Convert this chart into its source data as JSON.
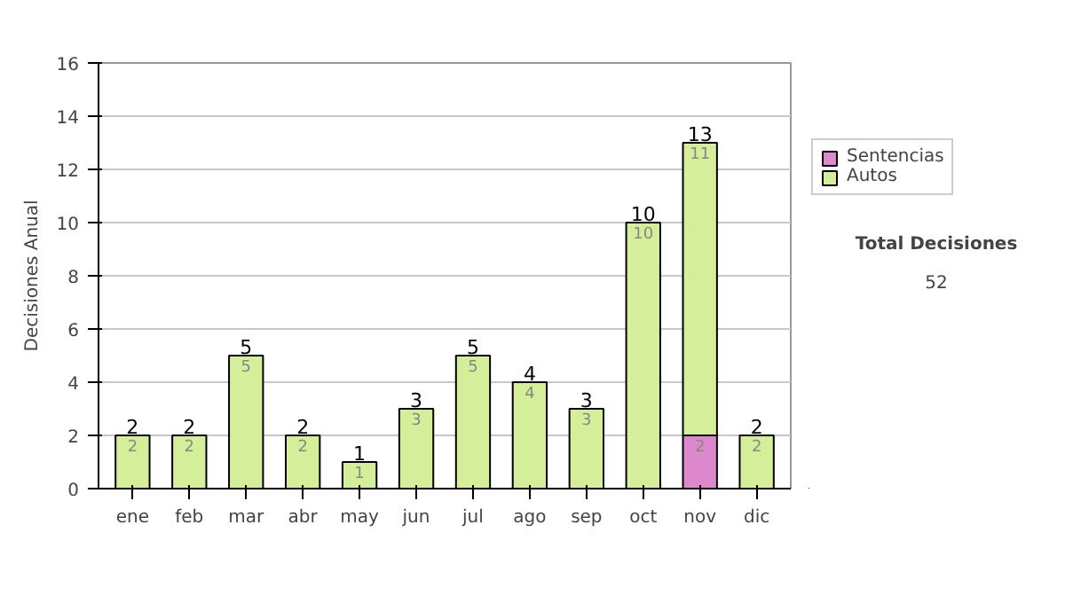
{
  "chart_data": {
    "type": "bar",
    "stacked": true,
    "ylabel": "Decisiones Anual",
    "categories": [
      "ene",
      "feb",
      "mar",
      "abr",
      "may",
      "jun",
      "jul",
      "ago",
      "sep",
      "oct",
      "nov",
      "dic"
    ],
    "series": [
      {
        "name": "Sentencias",
        "color": "#dd88cc",
        "values": [
          null,
          null,
          null,
          null,
          null,
          null,
          null,
          null,
          null,
          null,
          2,
          null
        ]
      },
      {
        "name": "Autos",
        "color": "#d4ee99",
        "values": [
          2,
          2,
          5,
          2,
          1,
          3,
          5,
          4,
          3,
          10,
          11,
          2
        ]
      }
    ],
    "data_labels": true,
    "totals": [
      "2",
      "2",
      "5",
      "2",
      "1",
      "3",
      "5",
      "4",
      "3",
      "10",
      "13",
      "2"
    ],
    "ylim": [
      0,
      16
    ],
    "yticks": [
      0,
      2,
      4,
      6,
      8,
      10,
      12,
      14,
      16
    ],
    "grid": "y",
    "legend": "right",
    "annotations": [
      "Total Decisiones",
      "52"
    ]
  }
}
